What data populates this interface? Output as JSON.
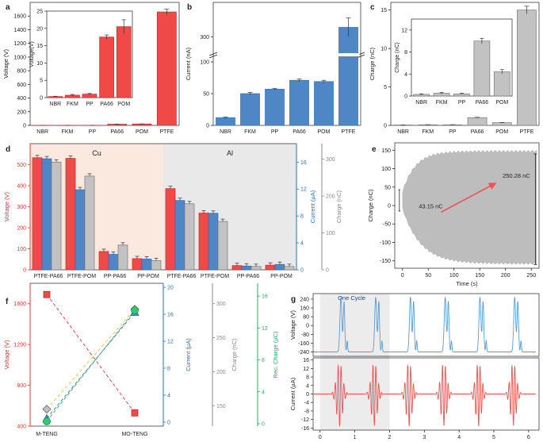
{
  "colors": {
    "red": "#f04a48",
    "blue": "#4f86c6",
    "gray": "#c2c2c2",
    "green": "#2ecc71",
    "dred": "#e53935",
    "dblue": "#2f6db5",
    "dgray": "#8a8a8a",
    "dgreen": "#27ae60",
    "cu_bg": "#fbe9df",
    "al_bg": "#e9e9e9",
    "plotgray": "#bdbdbd",
    "red_line": "#ef5350",
    "blue_line": "#5b9bd5",
    "yellow": "#f2c14e",
    "title": "#2c3e8f"
  },
  "panels": {
    "a": "a",
    "b": "b",
    "c": "c",
    "d": "d",
    "e": "e",
    "f": "f",
    "g": "g"
  },
  "chart_data": [
    {
      "id": "a",
      "type": "bar",
      "categories": [
        "NBR",
        "FKM",
        "PP",
        "PA66",
        "POM",
        "PTFE"
      ],
      "values": [
        0.3,
        0.7,
        1.0,
        17.0,
        20.0,
        1660
      ],
      "errors": [
        0.1,
        0.2,
        0.2,
        1.0,
        2.0,
        40
      ],
      "ylabel": "Voltage (V)",
      "ylim": [
        0,
        1800
      ],
      "yticks": [
        "0",
        "200",
        "400",
        "600",
        "800",
        "1000",
        "1200",
        "1400",
        "1600"
      ],
      "inset": {
        "ylabel": "Voltage(V)",
        "categories": [
          "NBR",
          "FKM",
          "PP",
          "PA66",
          "POM"
        ],
        "values": [
          0.3,
          0.7,
          1.0,
          17.5,
          20.5
        ],
        "errors": [
          0.1,
          0.2,
          0.2,
          0.6,
          2.0
        ],
        "ylim": [
          0,
          25
        ],
        "yticks": [
          "0",
          "5",
          "10",
          "15",
          "20",
          "25"
        ]
      }
    },
    {
      "id": "b",
      "type": "bar",
      "categories": [
        "NBR",
        "FKM",
        "PP",
        "PA66",
        "POM",
        "PTFE"
      ],
      "values": [
        12,
        50,
        57,
        71,
        69,
        330
      ],
      "errors": [
        1,
        2,
        1,
        2,
        2,
        30
      ],
      "ylabel": "Current (nA)",
      "yticks": [
        "0",
        "50",
        "100",
        "300"
      ]
    },
    {
      "id": "c",
      "type": "bar",
      "categories": [
        "NBR",
        "FKM",
        "PP",
        "PA66",
        "POM",
        "PTFE"
      ],
      "values": [
        0.05,
        0.08,
        0.08,
        1.0,
        0.35,
        15
      ],
      "errors": [
        0.01,
        0.01,
        0.01,
        0.05,
        0.03,
        0.5
      ],
      "ylabel": "Charge (nC)",
      "ylim": [
        0,
        16
      ],
      "yticks": [
        "0",
        "5",
        "10",
        "15"
      ],
      "inset": {
        "ylabel": "Charge (nC)",
        "categories": [
          "NBR",
          "FKM",
          "PP",
          "PA66",
          "POM"
        ],
        "values": [
          0.3,
          0.5,
          0.4,
          10.0,
          4.4
        ],
        "errors": [
          0.1,
          0.15,
          0.1,
          0.5,
          0.4
        ],
        "ylim": [
          0,
          14
        ],
        "yticks": [
          "0",
          "4",
          "8",
          "12"
        ]
      }
    },
    {
      "id": "d",
      "type": "bar",
      "categories": [
        "PTFE-PA66",
        "PTFE-POM",
        "PP-PA66",
        "PP-POM",
        "PTFE-PA66",
        "PTFE-POM",
        "PP-PA66",
        "PP-POM"
      ],
      "regions": [
        "Cu",
        "Al"
      ],
      "series": [
        {
          "name": "Voltage",
          "unit": "V",
          "values": [
            533,
            530,
            87,
            53,
            386,
            270,
            20,
            22
          ]
        },
        {
          "name": "Current",
          "unit": "µA",
          "values": [
            16.5,
            11.9,
            2.3,
            1.6,
            10.3,
            8.4,
            0.56,
            0.8
          ]
        },
        {
          "name": "Charge",
          "unit": "nC",
          "values": [
            292,
            254,
            67,
            25,
            179,
            131,
            9,
            9
          ]
        }
      ],
      "axes": [
        {
          "label": "Voltage (V)",
          "ylim": [
            0,
            600
          ],
          "ticks": [
            "0",
            "100",
            "200",
            "300",
            "400",
            "500"
          ]
        },
        {
          "label": "Current (µA)",
          "ylim": [
            0,
            18.75
          ],
          "ticks": [
            "0",
            "4",
            "8",
            "12",
            "16"
          ]
        },
        {
          "label": "Charge (nC)",
          "ylim": [
            0,
            342
          ],
          "ticks": [
            "0",
            "100",
            "200",
            "300"
          ]
        }
      ]
    },
    {
      "id": "e",
      "type": "area",
      "xlabel": "Time (s)",
      "ylabel": "Charge (nC)",
      "xlim": [
        -15,
        265
      ],
      "ylim": [
        -170,
        170
      ],
      "xticks": [
        "0",
        "50",
        "100",
        "150",
        "200",
        "250"
      ],
      "yticks": [
        "-150",
        "-100",
        "-50",
        "0",
        "50",
        "100",
        "150"
      ],
      "annotations": [
        "43.15 nC",
        "250.28 nC"
      ],
      "envelope": {
        "start": [
          40,
          -10
        ],
        "end": [
          150,
          -160
        ]
      }
    },
    {
      "id": "f",
      "type": "line",
      "categories": [
        "M-TENG",
        "MO-TENG"
      ],
      "series": [
        {
          "name": "Voltage",
          "unit": "V",
          "values": [
            1690,
            530
          ]
        },
        {
          "name": "Current",
          "unit": "µA",
          "values": [
            0.55,
            16.3
          ]
        },
        {
          "name": "Charge",
          "unit": "nC",
          "values": [
            145,
            292
          ]
        },
        {
          "name": "Rec. Charge",
          "unit": "µC",
          "values": [
            0.3,
            14.2
          ]
        }
      ],
      "axes": [
        {
          "label": "Voltage (V)",
          "ylim": [
            400,
            1800
          ],
          "ticks": [
            "400",
            "800",
            "1200",
            "1600"
          ]
        },
        {
          "label": "Current (µA)",
          "ylim": [
            -0.6,
            20.6
          ],
          "ticks": [
            "0",
            "4",
            "8",
            "12",
            "16",
            "20"
          ]
        },
        {
          "label": "Charge (nC)",
          "ylim": [
            120,
            330
          ],
          "ticks": [
            "150",
            "200",
            "250",
            "300"
          ]
        },
        {
          "label": "Rec. Charge (µC)",
          "ylim": [
            -0.3,
            17.6
          ],
          "ticks": [
            "0",
            "4",
            "8",
            "12",
            "16"
          ]
        }
      ]
    },
    {
      "id": "g",
      "type": "line",
      "xlabel": "Time (s)",
      "xlim": [
        -0.2,
        6.3
      ],
      "xticks": [
        "0",
        "1",
        "2",
        "3",
        "4",
        "5",
        "6"
      ],
      "highlight": [
        0,
        2
      ],
      "highlight_label": "One Cycle",
      "series": [
        {
          "name": "Voltage",
          "ylabel": "Voltage (V)",
          "ylim": [
            -280,
            290
          ],
          "yticks": [
            "-240",
            "-160",
            "-80",
            "0",
            "80",
            "160",
            "240"
          ],
          "peak": 268,
          "base": -240
        },
        {
          "name": "Current",
          "ylabel": "Current (µA)",
          "ylim": [
            -17,
            17
          ],
          "yticks": [
            "-16",
            "-12",
            "-8",
            "-4",
            "0",
            "4",
            "8",
            "12",
            "16"
          ],
          "amp": 15
        }
      ]
    }
  ]
}
